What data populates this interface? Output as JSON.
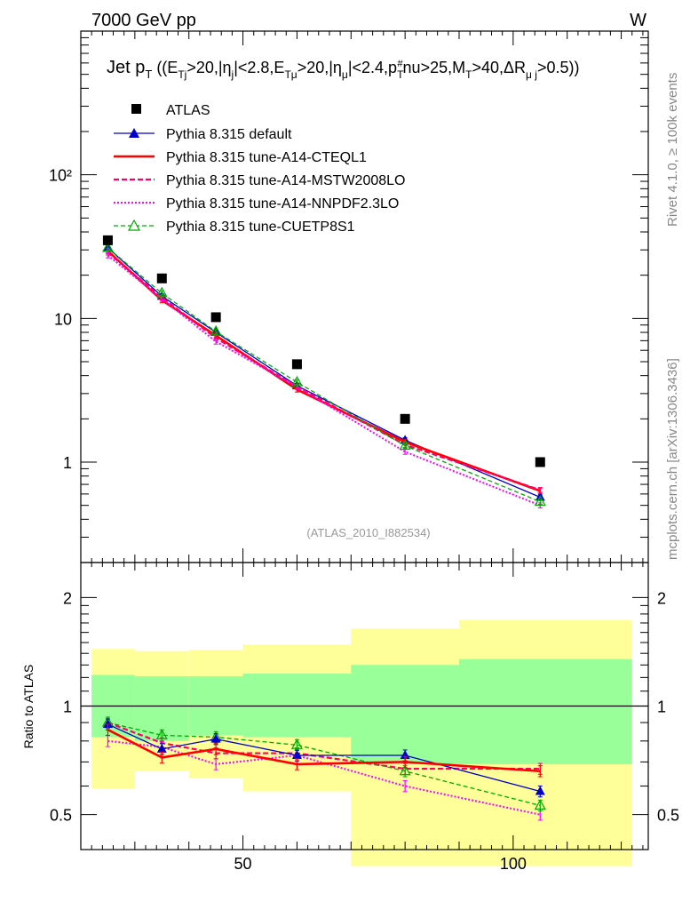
{
  "header": {
    "energy_label": "7000 GeV pp",
    "process_label": "W"
  },
  "side_labels": {
    "rivet": "Rivet 4.1.0, ≥ 100k events",
    "source": "mcplots.cern.ch [arXiv:1306.3436]"
  },
  "watermark": "(ATLAS_2010_I882534)",
  "colors": {
    "atlas": "#000000",
    "default": "#0000cc",
    "cteql1": "#ff0000",
    "mstw": "#ff0066",
    "nnpdf": "#ff00ff",
    "cuetp8s1": "#00aa00",
    "band_inner": "#99ff99",
    "band_outer": "#ffff99"
  },
  "chart_data": [
    {
      "type": "scatter",
      "panel": "main",
      "title": "Jet pT ((ETj>20,|ηj|<2.8,ETμ>20,|ημ|<2.4,pT#nu>25,MT>40,ΔRμj>0.5))",
      "title_parts": {
        "lead": "Jet p",
        "lead_sub": "T",
        "open": " ((E",
        "s1": "Tj",
        "t1": ">20,|η",
        "s2": "j",
        "t2": "|<2.8,E",
        "s3": "Tμ",
        "t3": ">20,|η",
        "s4": "μ",
        "t4": "|<2.4,p",
        "s5": "T",
        "sup5": "#",
        "t5": "nu>25,M",
        "s6": "T",
        "t6": ">40,ΔR",
        "s7": "μ j",
        "t7": ">0.5))"
      },
      "xscale": "linear",
      "yscale": "log",
      "xlim": [
        20,
        125
      ],
      "ylim": [
        0.2,
        1000
      ],
      "x_ticks": [
        50,
        100
      ],
      "y_ticks": [
        1,
        10,
        100
      ],
      "y_tick_labels": [
        "1",
        "10",
        "10²"
      ],
      "legend_position": "top-left",
      "x": [
        25,
        35,
        45,
        60,
        80,
        105
      ],
      "series": [
        {
          "name": "ATLAS",
          "key": "atlas",
          "style": "square",
          "values": [
            35,
            19,
            10.2,
            4.8,
            2.0,
            1.0
          ]
        },
        {
          "name": "Pythia 8.315 default",
          "key": "default",
          "style": "line-triangle",
          "values": [
            31,
            14.3,
            8.0,
            3.4,
            1.42,
            0.57
          ]
        },
        {
          "name": "Pythia 8.315 tune-A14-CTEQL1",
          "key": "cteql1",
          "style": "thick-line",
          "values": [
            29.5,
            13.4,
            7.6,
            3.2,
            1.38,
            0.63
          ]
        },
        {
          "name": "Pythia 8.315 tune-A14-MSTW2008LO",
          "key": "mstw",
          "style": "dashed",
          "values": [
            28.8,
            14.0,
            7.3,
            3.35,
            1.32,
            0.64
          ]
        },
        {
          "name": "Pythia 8.315 tune-A14-NNPDF2.3LO",
          "key": "nnpdf",
          "style": "dotted",
          "values": [
            27.5,
            13.7,
            6.9,
            3.35,
            1.18,
            0.5
          ]
        },
        {
          "name": "Pythia 8.315 tune-CUETP8S1",
          "key": "cuetp8s1",
          "style": "dashed-open-triangle",
          "values": [
            31,
            15.0,
            8.1,
            3.6,
            1.3,
            0.53
          ]
        }
      ]
    },
    {
      "type": "line",
      "panel": "ratio",
      "ylabel": "Ratio to ATLAS",
      "xscale": "linear",
      "yscale": "log",
      "xlim": [
        20,
        125
      ],
      "ylim": [
        0.4,
        2.5
      ],
      "x_ticks": [
        50,
        100
      ],
      "y_ticks": [
        0.5,
        1,
        2
      ],
      "y_tick_labels": [
        "0.5",
        "1",
        "2"
      ],
      "band_bins": [
        {
          "lo": 22,
          "hi": 30,
          "inner": [
            0.82,
            1.22
          ],
          "outer": [
            0.59,
            1.44
          ]
        },
        {
          "lo": 30,
          "hi": 40,
          "inner": [
            0.8,
            1.21
          ],
          "outer": [
            0.66,
            1.42
          ]
        },
        {
          "lo": 40,
          "hi": 50,
          "inner": [
            0.83,
            1.21
          ],
          "outer": [
            0.63,
            1.43
          ]
        },
        {
          "lo": 50,
          "hi": 70,
          "inner": [
            0.82,
            1.23
          ],
          "outer": [
            0.58,
            1.48
          ]
        },
        {
          "lo": 70,
          "hi": 90,
          "inner": [
            0.69,
            1.3
          ],
          "outer": [
            0.36,
            1.64
          ]
        },
        {
          "lo": 90,
          "hi": 122,
          "inner": [
            0.69,
            1.35
          ],
          "outer": [
            0.36,
            1.73
          ]
        }
      ],
      "x": [
        25,
        35,
        45,
        60,
        80,
        105
      ],
      "series": [
        {
          "name": "Pythia 8.315 default",
          "key": "default",
          "values": [
            0.89,
            0.76,
            0.81,
            0.73,
            0.73,
            0.58
          ]
        },
        {
          "name": "Pythia 8.315 tune-A14-CTEQL1",
          "key": "cteql1",
          "values": [
            0.86,
            0.72,
            0.76,
            0.69,
            0.7,
            0.66
          ]
        },
        {
          "name": "Pythia 8.315 tune-A14-MSTW2008LO",
          "key": "mstw",
          "values": [
            0.9,
            0.79,
            0.74,
            0.74,
            0.67,
            0.67
          ]
        },
        {
          "name": "Pythia 8.315 tune-A14-NNPDF2.3LO",
          "key": "nnpdf",
          "values": [
            0.8,
            0.77,
            0.69,
            0.73,
            0.6,
            0.5
          ]
        },
        {
          "name": "Pythia 8.315 tune-CUETP8S1",
          "key": "cuetp8s1",
          "values": [
            0.9,
            0.83,
            0.82,
            0.78,
            0.66,
            0.53
          ]
        }
      ]
    }
  ]
}
